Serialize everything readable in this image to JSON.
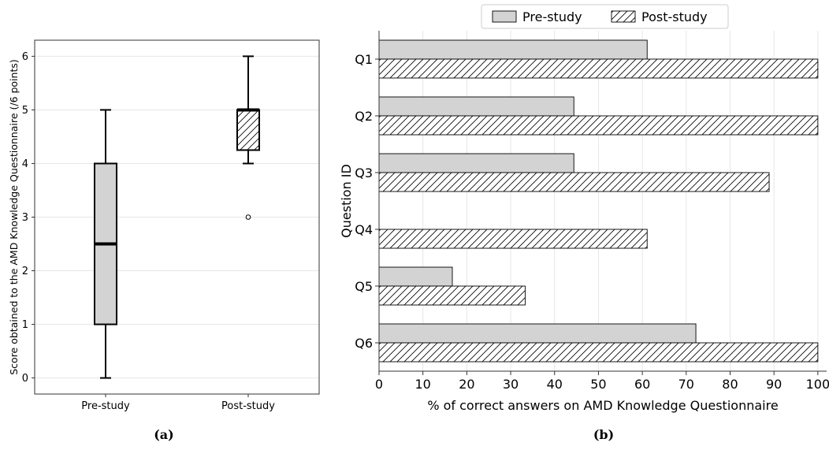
{
  "figure": {
    "caption_a": "(a)",
    "caption_b": "(b)"
  },
  "chart_data": [
    {
      "type": "boxplot",
      "panel": "a",
      "ylabel": "Score obtained to the AMD Knowledge Questionnaire (/6 points)",
      "xlabel": "",
      "categories": [
        "Pre-study",
        "Post-study"
      ],
      "ylim": [
        -0.3,
        6.3
      ],
      "yticks": [
        "0",
        "1",
        "2",
        "3",
        "4",
        "5",
        "6"
      ],
      "grid": true,
      "boxes": [
        {
          "name": "Pre-study",
          "min": 0,
          "q1": 1,
          "median": 2.5,
          "q3": 4,
          "max": 5,
          "outliers": [],
          "fill": "#d3d3d3",
          "hatch": false
        },
        {
          "name": "Post-study",
          "min": 4,
          "q1": 4.25,
          "median": 5,
          "q3": 5,
          "max": 6,
          "outliers": [
            3
          ],
          "fill": "#ffffff",
          "hatch": true
        }
      ]
    },
    {
      "type": "bar",
      "orientation": "horizontal",
      "panel": "b",
      "xlabel": "% of correct answers on AMD Knowledge Questionnaire",
      "ylabel": "Question ID",
      "categories": [
        "Q1",
        "Q2",
        "Q3",
        "Q4",
        "Q5",
        "Q6"
      ],
      "xlim": [
        0,
        102
      ],
      "xticks": [
        "0",
        "10",
        "20",
        "30",
        "40",
        "50",
        "60",
        "70",
        "80",
        "90",
        "100"
      ],
      "grid": true,
      "legend_position": "top-center",
      "series": [
        {
          "name": "Pre-study",
          "values": [
            61.1,
            44.4,
            44.4,
            0,
            16.7,
            72.2
          ],
          "fill": "#d3d3d3",
          "hatch": false
        },
        {
          "name": "Post-study",
          "values": [
            100,
            100,
            88.9,
            61.1,
            33.3,
            100
          ],
          "fill": "#ffffff",
          "hatch": true
        }
      ]
    }
  ]
}
